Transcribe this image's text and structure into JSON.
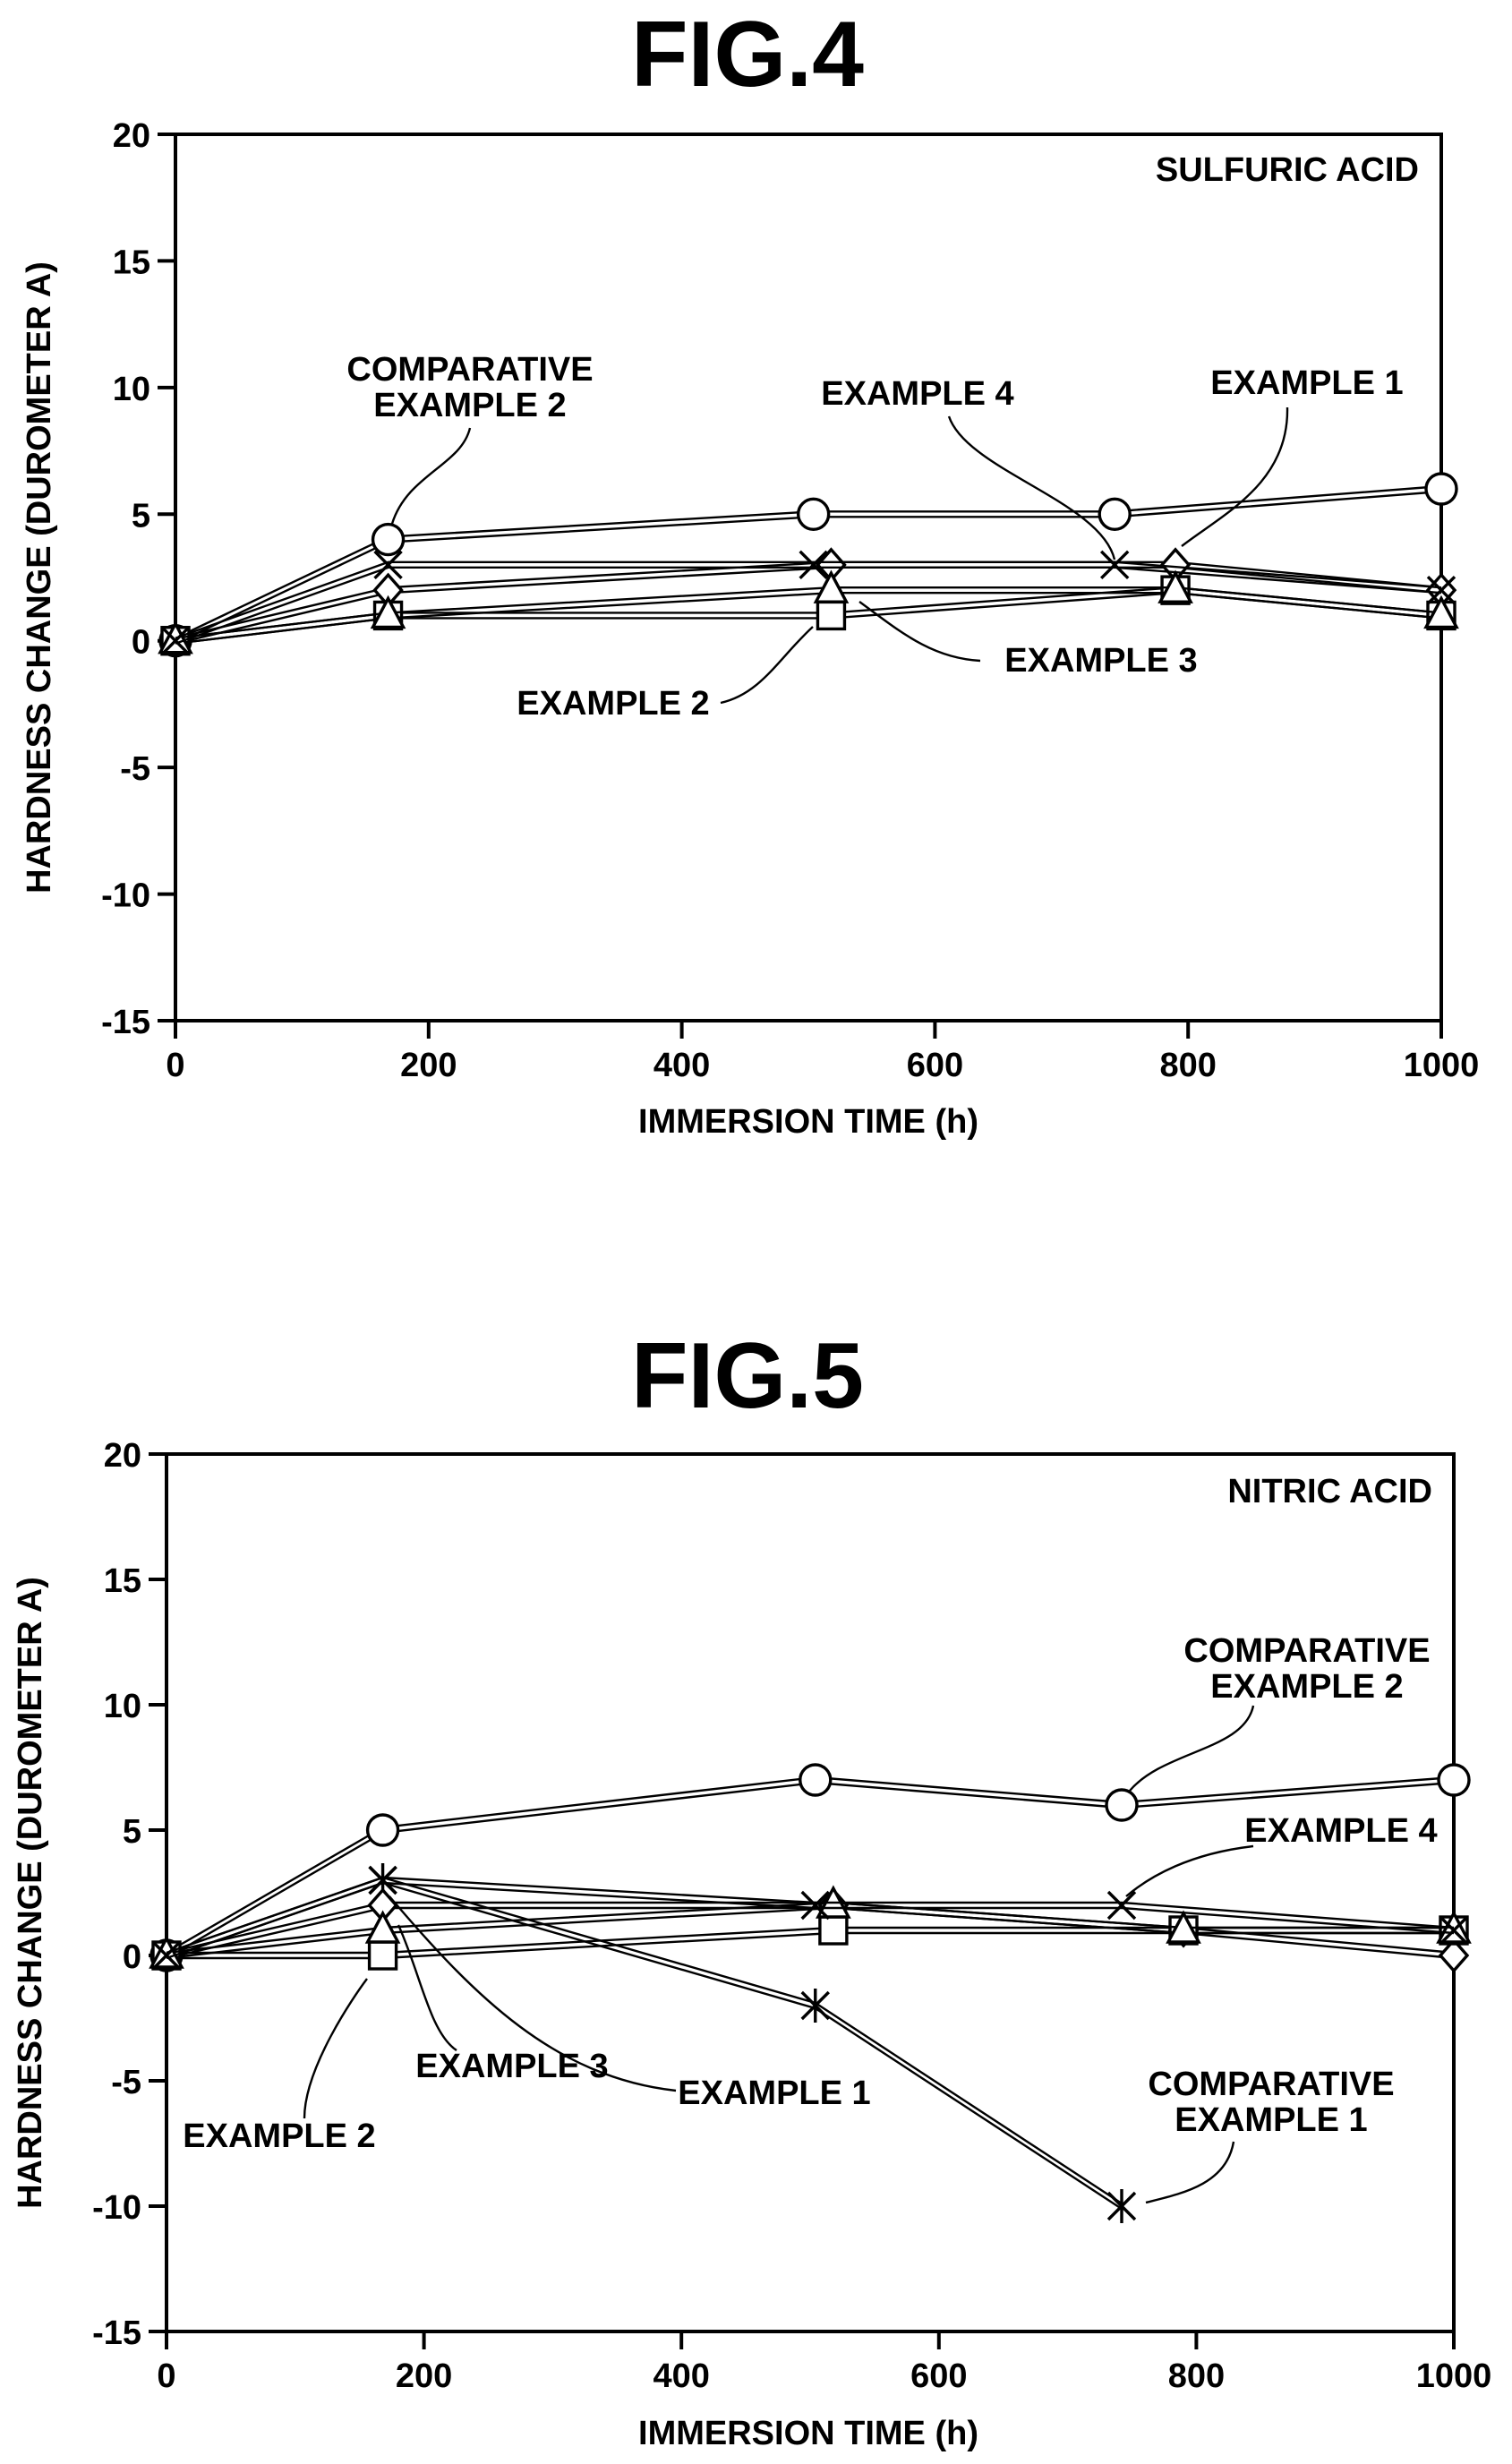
{
  "chart_data": [
    {
      "type": "line",
      "title": "FIG.4",
      "annotation": "SULFURIC ACID",
      "xlabel": "IMMERSION TIME (h)",
      "ylabel": "HARDNESS CHANGE (DUROMETER A)",
      "xlim": [
        0,
        1000
      ],
      "ylim": [
        -15,
        20
      ],
      "xticks": [
        0,
        200,
        400,
        600,
        800,
        1000
      ],
      "yticks": [
        -15,
        -10,
        -5,
        0,
        5,
        10,
        15,
        20
      ],
      "grid": false,
      "series": [
        {
          "name": "COMPARATIVE EXAMPLE 2",
          "marker": "circle",
          "x": [
            0,
            168,
            504,
            742,
            1000
          ],
          "y": [
            0,
            4,
            5,
            5,
            6
          ]
        },
        {
          "name": "EXAMPLE 1",
          "marker": "diamond",
          "x": [
            0,
            168,
            518,
            790,
            1000
          ],
          "y": [
            0,
            2,
            3,
            3,
            2
          ]
        },
        {
          "name": "EXAMPLE 2",
          "marker": "square",
          "x": [
            0,
            168,
            518,
            790,
            1000
          ],
          "y": [
            0,
            1,
            1,
            2,
            1
          ]
        },
        {
          "name": "EXAMPLE 3",
          "marker": "triangle",
          "x": [
            0,
            168,
            518,
            790,
            1000
          ],
          "y": [
            0,
            1,
            2,
            2,
            1
          ]
        },
        {
          "name": "EXAMPLE 4",
          "marker": "x",
          "x": [
            0,
            168,
            504,
            742,
            1000
          ],
          "y": [
            0,
            3,
            3,
            3,
            2
          ]
        }
      ],
      "labels": {
        "comp2": [
          "COMPARATIVE",
          "EXAMPLE 2"
        ],
        "ex4": "EXAMPLE 4",
        "ex1": "EXAMPLE 1",
        "ex3": "EXAMPLE 3",
        "ex2": "EXAMPLE 2"
      }
    },
    {
      "type": "line",
      "title": "FIG.5",
      "annotation": "NITRIC ACID",
      "xlabel": "IMMERSION TIME (h)",
      "ylabel": "HARDNESS CHANGE (DUROMETER A)",
      "xlim": [
        0,
        1000
      ],
      "ylim": [
        -15,
        20
      ],
      "xticks": [
        0,
        200,
        400,
        600,
        800,
        1000
      ],
      "yticks": [
        -15,
        -10,
        -5,
        0,
        5,
        10,
        15,
        20
      ],
      "grid": false,
      "series": [
        {
          "name": "COMPARATIVE EXAMPLE 2",
          "marker": "circle",
          "x": [
            0,
            168,
            504,
            742,
            1000
          ],
          "y": [
            0,
            5,
            7,
            6,
            7
          ]
        },
        {
          "name": "COMPARATIVE EXAMPLE 1",
          "marker": "asterisk",
          "x": [
            0,
            168,
            504,
            742
          ],
          "y": [
            0,
            3,
            -2,
            -10
          ]
        },
        {
          "name": "EXAMPLE 1",
          "marker": "diamond",
          "x": [
            0,
            168,
            518,
            790,
            1000
          ],
          "y": [
            0,
            2,
            2,
            1,
            0
          ]
        },
        {
          "name": "EXAMPLE 2",
          "marker": "square",
          "x": [
            0,
            168,
            518,
            790,
            1000
          ],
          "y": [
            0,
            0,
            1,
            1,
            1
          ]
        },
        {
          "name": "EXAMPLE 3",
          "marker": "triangle",
          "x": [
            0,
            168,
            518,
            790,
            1000
          ],
          "y": [
            0,
            1,
            2,
            1,
            1
          ]
        },
        {
          "name": "EXAMPLE 4",
          "marker": "x",
          "x": [
            0,
            168,
            504,
            742,
            1000
          ],
          "y": [
            0,
            3,
            2,
            2,
            1
          ]
        }
      ],
      "labels": {
        "comp2": [
          "COMPARATIVE",
          "EXAMPLE 2"
        ],
        "ex4": "EXAMPLE 4",
        "ex3": "EXAMPLE 3",
        "ex1": "EXAMPLE 1",
        "ex2": "EXAMPLE 2",
        "comp1": [
          "COMPARATIVE",
          "EXAMPLE 1"
        ]
      }
    }
  ]
}
